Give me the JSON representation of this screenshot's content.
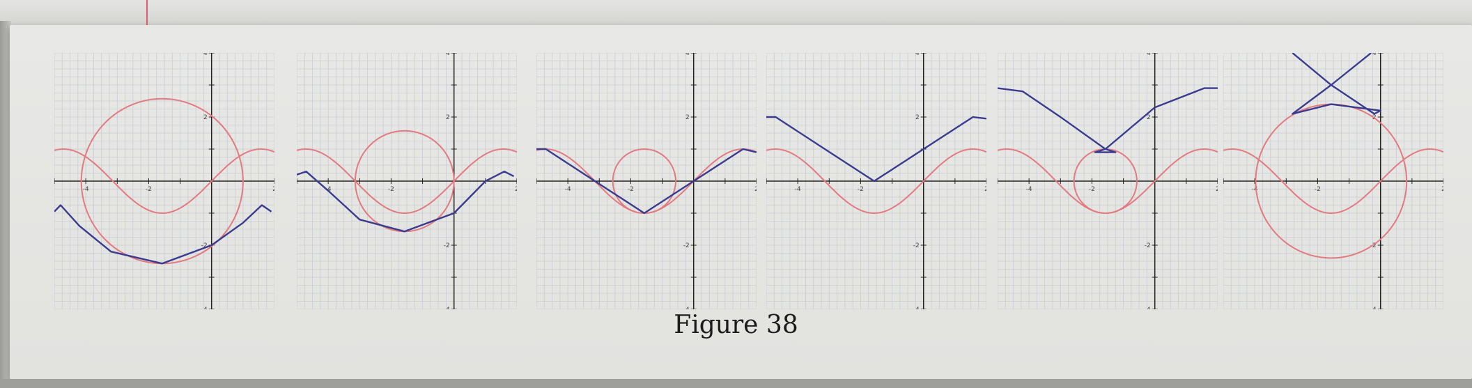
{
  "figure": {
    "caption": "Figure 38"
  },
  "chart_data": [
    {
      "type": "line",
      "series": [
        {
          "values_desc": "circle",
          "cx": -1.571,
          "cy": 0,
          "r": 2.571
        },
        {
          "values_desc": "sine",
          "fn": "sin"
        },
        {
          "values_desc": "curve",
          "points": [
            [
              -5,
              -0.95
            ],
            [
              -4.8,
              -0.75
            ],
            [
              -4.2,
              -1.4
            ],
            [
              -3.2,
              -2.2
            ],
            [
              -1.571,
              -2.571
            ],
            [
              0,
              -2.0
            ],
            [
              1.0,
              -1.3
            ],
            [
              1.6,
              -0.75
            ],
            [
              1.9,
              -0.95
            ]
          ]
        }
      ],
      "xlim": [
        -5,
        2
      ],
      "ylim": [
        -4,
        4
      ],
      "xticks": [
        "-4",
        "-2",
        "2"
      ],
      "yticks": [
        "-4",
        "-2",
        "2",
        "4"
      ],
      "colors": {
        "red": "#e27a80",
        "blue": "#3a3b8e"
      }
    },
    {
      "type": "line",
      "series": [
        {
          "values_desc": "circle",
          "cx": -1.571,
          "cy": 0,
          "r": 1.571
        },
        {
          "values_desc": "sine",
          "fn": "sin"
        },
        {
          "values_desc": "curve",
          "points": [
            [
              -5,
              0.2
            ],
            [
              -4.7,
              0.3
            ],
            [
              -4.0,
              -0.3
            ],
            [
              -3.0,
              -1.2
            ],
            [
              -1.571,
              -1.571
            ],
            [
              0,
              -1.0
            ],
            [
              1.0,
              0.0
            ],
            [
              1.6,
              0.3
            ],
            [
              1.9,
              0.15
            ]
          ]
        }
      ],
      "xlim": [
        -5,
        2
      ],
      "ylim": [
        -4,
        4
      ],
      "xticks": [
        "-4",
        "-2",
        "2"
      ],
      "yticks": [
        "-4",
        "-2",
        "2",
        "4"
      ]
    },
    {
      "type": "line",
      "series": [
        {
          "values_desc": "circle",
          "cx": -1.571,
          "cy": 0,
          "r": 1.0
        },
        {
          "values_desc": "sine",
          "fn": "sin"
        },
        {
          "values_desc": "curve",
          "points": [
            [
              -5,
              1.0
            ],
            [
              -4.7,
              1.0
            ],
            [
              -3.14,
              0
            ],
            [
              -1.571,
              -1.0
            ],
            [
              0,
              0
            ],
            [
              1.571,
              1.0
            ],
            [
              2,
              0.9
            ]
          ]
        }
      ],
      "xlim": [
        -5,
        2
      ],
      "ylim": [
        -4,
        4
      ],
      "xticks": [
        "-4",
        "-2",
        "2"
      ],
      "yticks": [
        "-4",
        "-2",
        "2",
        "4"
      ]
    },
    {
      "type": "line",
      "series": [
        {
          "values_desc": "sine",
          "fn": "sin"
        },
        {
          "values_desc": "curve",
          "points": [
            [
              -5,
              2.0
            ],
            [
              -4.7,
              2.0
            ],
            [
              -3.14,
              1.0
            ],
            [
              -1.571,
              0
            ],
            [
              0,
              1.0
            ],
            [
              1.571,
              2.0
            ],
            [
              2,
              1.95
            ]
          ]
        }
      ],
      "xlim": [
        -5,
        2
      ],
      "ylim": [
        -4,
        4
      ],
      "xticks": [
        "-4",
        "-2",
        "2"
      ],
      "yticks": [
        "-4",
        "-2",
        "2",
        "4"
      ]
    },
    {
      "type": "line",
      "series": [
        {
          "values_desc": "circle",
          "cx": -1.571,
          "cy": 0,
          "r": 1.0
        },
        {
          "values_desc": "sine",
          "fn": "sin"
        },
        {
          "values_desc": "curve",
          "points": [
            [
              -5,
              2.9
            ],
            [
              -4.2,
              2.8
            ],
            [
              -3.0,
              2.0
            ],
            [
              -1.571,
              1.0
            ],
            [
              -1.9,
              0.9
            ],
            [
              -1.25,
              0.9
            ],
            [
              -1.571,
              1.0
            ],
            [
              0,
              2.3
            ],
            [
              1.571,
              2.9
            ],
            [
              2,
              2.9
            ]
          ]
        }
      ],
      "xlim": [
        -5,
        2
      ],
      "ylim": [
        -4,
        4
      ],
      "xticks": [
        "-4",
        "-2",
        "2"
      ],
      "yticks": [
        "-4",
        "-2",
        "2",
        "4"
      ]
    },
    {
      "type": "line",
      "series": [
        {
          "values_desc": "circle",
          "cx": -1.571,
          "cy": 0,
          "r": 2.4
        },
        {
          "values_desc": "sine",
          "fn": "sin"
        },
        {
          "values_desc": "curve",
          "points": [
            [
              -2.8,
              4.0
            ],
            [
              -1.571,
              3.0
            ],
            [
              -0.2,
              2.1
            ],
            [
              0,
              2.2
            ],
            [
              -1.571,
              2.4
            ],
            [
              -2.8,
              2.1
            ],
            [
              -2.8,
              2.1
            ],
            [
              -1.571,
              3.0
            ],
            [
              -0.3,
              4.0
            ]
          ]
        }
      ],
      "xlim": [
        -5,
        2
      ],
      "ylim": [
        -4,
        4
      ],
      "xticks": [
        "-4",
        "-2",
        "2"
      ],
      "yticks": [
        "-4",
        "-2",
        "2",
        "4"
      ]
    }
  ]
}
